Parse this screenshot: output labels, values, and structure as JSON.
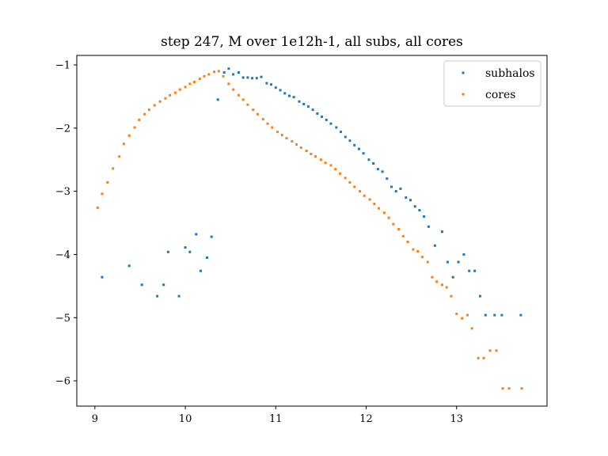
{
  "chart_data": {
    "type": "scatter",
    "title": "step 247, M over 1e12h-1, all subs, all cores",
    "xlabel": "",
    "ylabel": "",
    "xlim": [
      8.8,
      14.0
    ],
    "ylim": [
      -6.4,
      -0.85
    ],
    "xticks": [
      9,
      10,
      11,
      12,
      13
    ],
    "xtick_labels": [
      "9",
      "10",
      "11",
      "12",
      "13"
    ],
    "yticks": [
      -1,
      -2,
      -3,
      -4,
      -5,
      -6
    ],
    "ytick_labels": [
      "−1",
      "−2",
      "−3",
      "−4",
      "−5",
      "−6"
    ],
    "grid": false,
    "legend_position": "top-right",
    "series": [
      {
        "name": "subhalos",
        "color": "#1f77b4",
        "points": [
          [
            9.08,
            -4.36
          ],
          [
            9.38,
            -4.18
          ],
          [
            9.52,
            -4.48
          ],
          [
            9.69,
            -4.66
          ],
          [
            9.76,
            -4.48
          ],
          [
            9.81,
            -3.96
          ],
          [
            9.93,
            -4.66
          ],
          [
            10.0,
            -3.89
          ],
          [
            10.05,
            -3.96
          ],
          [
            10.12,
            -3.68
          ],
          [
            10.17,
            -4.26
          ],
          [
            10.24,
            -4.05
          ],
          [
            10.29,
            -3.72
          ],
          [
            10.36,
            -1.55
          ],
          [
            10.43,
            -1.12
          ],
          [
            10.48,
            -1.06
          ],
          [
            10.53,
            -1.15
          ],
          [
            10.59,
            -1.12
          ],
          [
            10.64,
            -1.2
          ],
          [
            10.69,
            -1.2
          ],
          [
            10.74,
            -1.21
          ],
          [
            10.79,
            -1.21
          ],
          [
            10.84,
            -1.19
          ],
          [
            10.9,
            -1.29
          ],
          [
            10.95,
            -1.31
          ],
          [
            11.0,
            -1.36
          ],
          [
            11.05,
            -1.4
          ],
          [
            11.1,
            -1.45
          ],
          [
            11.15,
            -1.49
          ],
          [
            11.2,
            -1.51
          ],
          [
            11.26,
            -1.58
          ],
          [
            11.31,
            -1.62
          ],
          [
            11.36,
            -1.66
          ],
          [
            11.41,
            -1.71
          ],
          [
            11.46,
            -1.77
          ],
          [
            11.51,
            -1.82
          ],
          [
            11.56,
            -1.87
          ],
          [
            11.61,
            -1.93
          ],
          [
            11.67,
            -1.99
          ],
          [
            11.72,
            -2.06
          ],
          [
            11.77,
            -2.14
          ],
          [
            11.82,
            -2.2
          ],
          [
            11.87,
            -2.27
          ],
          [
            11.92,
            -2.33
          ],
          [
            11.97,
            -2.4
          ],
          [
            12.03,
            -2.5
          ],
          [
            12.08,
            -2.56
          ],
          [
            12.13,
            -2.65
          ],
          [
            12.18,
            -2.69
          ],
          [
            12.23,
            -2.8
          ],
          [
            12.28,
            -2.93
          ],
          [
            12.33,
            -3.0
          ],
          [
            12.38,
            -2.96
          ],
          [
            12.44,
            -3.1
          ],
          [
            12.49,
            -3.14
          ],
          [
            12.54,
            -3.24
          ],
          [
            12.59,
            -3.3
          ],
          [
            12.64,
            -3.4
          ],
          [
            12.69,
            -3.56
          ],
          [
            12.76,
            -3.86
          ],
          [
            12.84,
            -3.64
          ],
          [
            12.9,
            -4.12
          ],
          [
            12.96,
            -4.36
          ],
          [
            13.02,
            -4.12
          ],
          [
            13.08,
            -4.0
          ],
          [
            13.14,
            -4.26
          ],
          [
            13.2,
            -4.26
          ],
          [
            13.26,
            -4.66
          ],
          [
            13.32,
            -4.96
          ],
          [
            13.42,
            -4.96
          ],
          [
            13.5,
            -4.96
          ],
          [
            13.71,
            -4.96
          ]
        ]
      },
      {
        "name": "cores",
        "color": "#ff7f0e",
        "points": [
          [
            9.03,
            -3.26
          ],
          [
            9.08,
            -3.04
          ],
          [
            9.14,
            -2.86
          ],
          [
            9.2,
            -2.64
          ],
          [
            9.27,
            -2.45
          ],
          [
            9.32,
            -2.25
          ],
          [
            9.38,
            -2.12
          ],
          [
            9.44,
            -1.99
          ],
          [
            9.49,
            -1.87
          ],
          [
            9.55,
            -1.78
          ],
          [
            9.6,
            -1.71
          ],
          [
            9.66,
            -1.64
          ],
          [
            9.72,
            -1.58
          ],
          [
            9.78,
            -1.53
          ],
          [
            9.83,
            -1.48
          ],
          [
            9.89,
            -1.44
          ],
          [
            9.94,
            -1.39
          ],
          [
            10.0,
            -1.35
          ],
          [
            10.05,
            -1.3
          ],
          [
            10.1,
            -1.27
          ],
          [
            10.16,
            -1.22
          ],
          [
            10.21,
            -1.18
          ],
          [
            10.26,
            -1.15
          ],
          [
            10.32,
            -1.11
          ],
          [
            10.37,
            -1.1
          ],
          [
            10.42,
            -1.18
          ],
          [
            10.48,
            -1.3
          ],
          [
            10.53,
            -1.39
          ],
          [
            10.59,
            -1.48
          ],
          [
            10.64,
            -1.55
          ],
          [
            10.69,
            -1.63
          ],
          [
            10.75,
            -1.71
          ],
          [
            10.8,
            -1.78
          ],
          [
            10.86,
            -1.86
          ],
          [
            10.91,
            -1.93
          ],
          [
            10.96,
            -1.99
          ],
          [
            11.02,
            -2.06
          ],
          [
            11.07,
            -2.11
          ],
          [
            11.12,
            -2.16
          ],
          [
            11.18,
            -2.21
          ],
          [
            11.23,
            -2.26
          ],
          [
            11.28,
            -2.31
          ],
          [
            11.34,
            -2.36
          ],
          [
            11.39,
            -2.41
          ],
          [
            11.44,
            -2.45
          ],
          [
            11.5,
            -2.5
          ],
          [
            11.55,
            -2.55
          ],
          [
            11.61,
            -2.59
          ],
          [
            11.66,
            -2.65
          ],
          [
            11.71,
            -2.72
          ],
          [
            11.77,
            -2.79
          ],
          [
            11.82,
            -2.86
          ],
          [
            11.87,
            -2.93
          ],
          [
            11.93,
            -3.0
          ],
          [
            11.98,
            -3.07
          ],
          [
            12.04,
            -3.13
          ],
          [
            12.09,
            -3.2
          ],
          [
            12.14,
            -3.27
          ],
          [
            12.2,
            -3.34
          ],
          [
            12.25,
            -3.42
          ],
          [
            12.3,
            -3.52
          ],
          [
            12.36,
            -3.6
          ],
          [
            12.41,
            -3.71
          ],
          [
            12.46,
            -3.8
          ],
          [
            12.52,
            -3.92
          ],
          [
            12.57,
            -3.95
          ],
          [
            12.62,
            -4.04
          ],
          [
            12.68,
            -4.12
          ],
          [
            12.73,
            -4.36
          ],
          [
            12.78,
            -4.43
          ],
          [
            12.84,
            -4.48
          ],
          [
            12.89,
            -4.52
          ],
          [
            12.94,
            -4.66
          ],
          [
            13.0,
            -4.94
          ],
          [
            13.06,
            -5.01
          ],
          [
            13.12,
            -4.96
          ],
          [
            13.17,
            -5.17
          ],
          [
            13.24,
            -5.64
          ],
          [
            13.3,
            -5.64
          ],
          [
            13.37,
            -5.52
          ],
          [
            13.44,
            -5.52
          ],
          [
            13.51,
            -6.12
          ],
          [
            13.58,
            -6.12
          ],
          [
            13.72,
            -6.12
          ]
        ]
      }
    ]
  }
}
